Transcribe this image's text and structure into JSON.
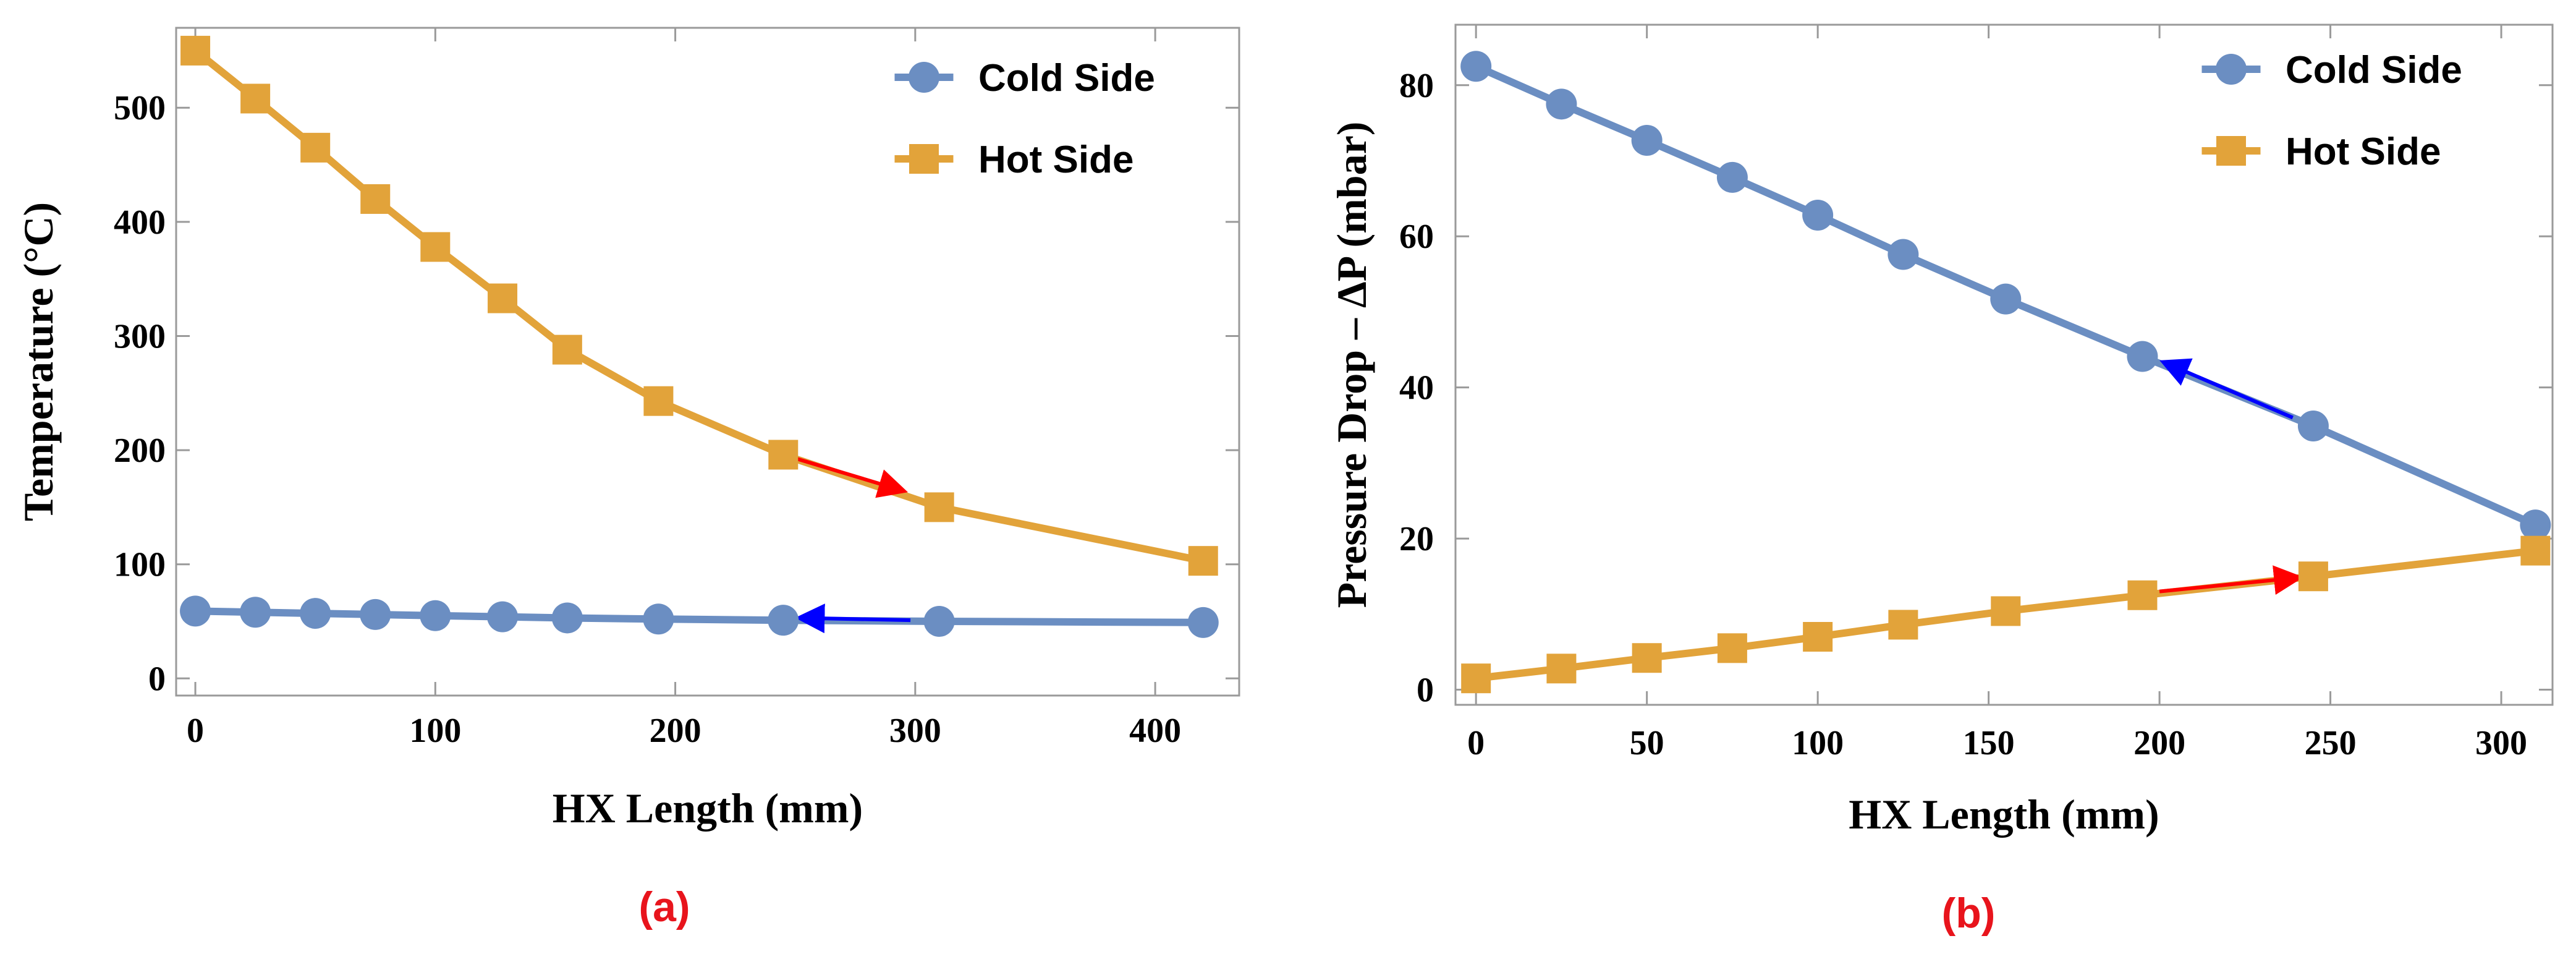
{
  "colors": {
    "cold": "#6b8ec2",
    "hot": "#e2a33a",
    "arrow_red": "#ff0000",
    "arrow_blue": "#0000ff",
    "caption": "#e8141c",
    "frame": "#9a9a9a"
  },
  "chart_data": [
    {
      "type": "line",
      "caption": "(a)",
      "xlabel": "HX Length (mm)",
      "ylabel": "Temperature (°C)",
      "xlim": [
        -8,
        435
      ],
      "ylim": [
        -15,
        570
      ],
      "xticks": [
        0,
        100,
        200,
        300,
        400
      ],
      "yticks": [
        0,
        100,
        200,
        300,
        400,
        500
      ],
      "legend_position": "top-right",
      "series": [
        {
          "name": "Cold Side",
          "marker": "circle",
          "x": [
            0,
            25,
            50,
            75,
            100,
            128,
            155,
            193,
            245,
            310,
            420
          ],
          "y": [
            59,
            58,
            57,
            56,
            55,
            54,
            53,
            52,
            51,
            50,
            49
          ]
        },
        {
          "name": "Hot Side",
          "marker": "square",
          "x": [
            0,
            25,
            50,
            75,
            100,
            128,
            155,
            193,
            245,
            310,
            420
          ],
          "y": [
            550,
            508,
            465,
            420,
            378,
            333,
            288,
            243,
            196,
            150,
            103
          ]
        }
      ],
      "arrows": [
        {
          "color": "red",
          "from": [
            245,
            196
          ],
          "to": [
            294,
            165
          ]
        },
        {
          "color": "blue",
          "from": [
            298,
            51
          ],
          "to": [
            253,
            53
          ]
        }
      ]
    },
    {
      "type": "line",
      "caption": "(b)",
      "xlabel": "HX Length (mm)",
      "ylabel": "Pressure Drop – ΔP (mbar)",
      "xlim": [
        -6,
        315
      ],
      "ylim": [
        -2,
        88
      ],
      "xticks": [
        0,
        50,
        100,
        150,
        200,
        250,
        300
      ],
      "yticks": [
        0,
        20,
        40,
        60,
        80
      ],
      "legend_position": "top-right",
      "series": [
        {
          "name": "Cold Side",
          "marker": "circle",
          "x": [
            0,
            25,
            50,
            75,
            100,
            125,
            155,
            195,
            245,
            310
          ],
          "y": [
            82.5,
            77.5,
            72.7,
            67.8,
            62.8,
            57.6,
            51.7,
            44.1,
            34.9,
            21.8
          ]
        },
        {
          "name": "Hot Side",
          "marker": "square",
          "x": [
            0,
            25,
            50,
            75,
            100,
            125,
            155,
            195,
            245,
            310
          ],
          "y": [
            1.5,
            2.8,
            4.2,
            5.5,
            7.0,
            8.6,
            10.4,
            12.5,
            15.0,
            18.4
          ]
        }
      ],
      "arrows": [
        {
          "color": "red",
          "from": [
            200,
            13.0
          ],
          "to": [
            240,
            14.8
          ]
        },
        {
          "color": "blue",
          "from": [
            239,
            36.0
          ],
          "to": [
            202,
            43.2
          ]
        }
      ]
    }
  ]
}
